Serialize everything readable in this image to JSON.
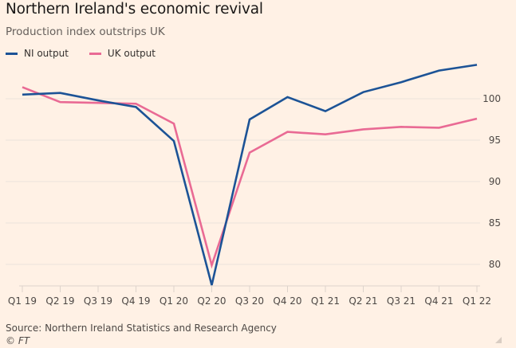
{
  "chart_data": {
    "type": "line",
    "title": "Northern Ireland's economic revival",
    "subtitle": "Production index outstrips UK",
    "xlabel": "",
    "ylabel": "",
    "categories": [
      "Q1 19",
      "Q2 19",
      "Q3 19",
      "Q4 19",
      "Q1 20",
      "Q2 20",
      "Q3 20",
      "Q4 20",
      "Q1 21",
      "Q2 21",
      "Q3 21",
      "Q4 21",
      "Q1 22"
    ],
    "series": [
      {
        "name": "NI output",
        "color": "#1c5396",
        "values": [
          100.5,
          100.7,
          99.8,
          99.0,
          94.9,
          77.5,
          97.5,
          100.2,
          98.5,
          100.8,
          102.0,
          103.4,
          104.1
        ]
      },
      {
        "name": "UK output",
        "color": "#e96a94",
        "values": [
          101.4,
          99.6,
          99.5,
          99.4,
          97.0,
          79.9,
          93.5,
          96.0,
          95.7,
          96.3,
          96.6,
          96.5,
          97.6
        ]
      }
    ],
    "yticks": [
      80,
      85,
      90,
      95,
      100
    ],
    "ylim": [
      77.3,
      105
    ],
    "grid": true,
    "legend_position": "top-left",
    "y_axis_side": "right"
  },
  "footer": {
    "source": "Source: Northern Ireland Statistics and Research Agency",
    "copyright": "© FT"
  },
  "colors": {
    "background": "#fff1e5",
    "gridline": "#ebe2da",
    "axis": "#ddd3cb"
  }
}
